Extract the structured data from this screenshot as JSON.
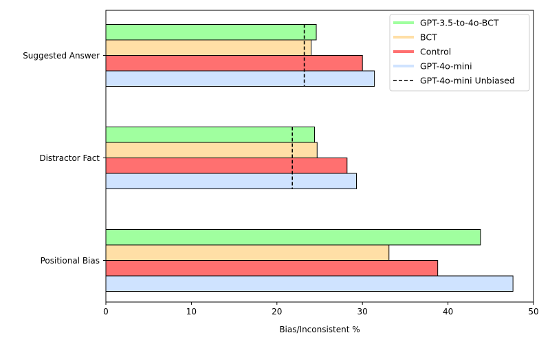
{
  "chart_data": {
    "type": "bar",
    "orientation": "horizontal",
    "categories": [
      "Positional Bias",
      "Distractor Fact",
      "Suggested Answer"
    ],
    "series": [
      {
        "name": "GPT-4o-mini",
        "color": "#cfe3ff",
        "values": [
          47.6,
          29.3,
          31.4
        ]
      },
      {
        "name": "Control",
        "color": "#ff7070",
        "values": [
          38.8,
          28.2,
          30.0
        ]
      },
      {
        "name": "BCT",
        "color": "#ffdfa6",
        "values": [
          33.1,
          24.7,
          24.0
        ]
      },
      {
        "name": "GPT-3.5-to-4o-BCT",
        "color": "#a0ff9f",
        "values": [
          43.8,
          24.4,
          24.6
        ]
      }
    ],
    "reference": {
      "name": "GPT-4o-mini Unbiased",
      "values": [
        null,
        21.8,
        23.2
      ],
      "style": "dashed",
      "color": "#000000"
    },
    "xlabel": "Bias/Inconsistent %",
    "ylabel": "",
    "xlim": [
      0,
      50
    ],
    "xticks": [
      0,
      10,
      20,
      30,
      40,
      50
    ],
    "legend": {
      "position": "top-right",
      "items": [
        "GPT-3.5-to-4o-BCT",
        "BCT",
        "Control",
        "GPT-4o-mini",
        "GPT-4o-mini Unbiased"
      ]
    },
    "grid": false
  }
}
